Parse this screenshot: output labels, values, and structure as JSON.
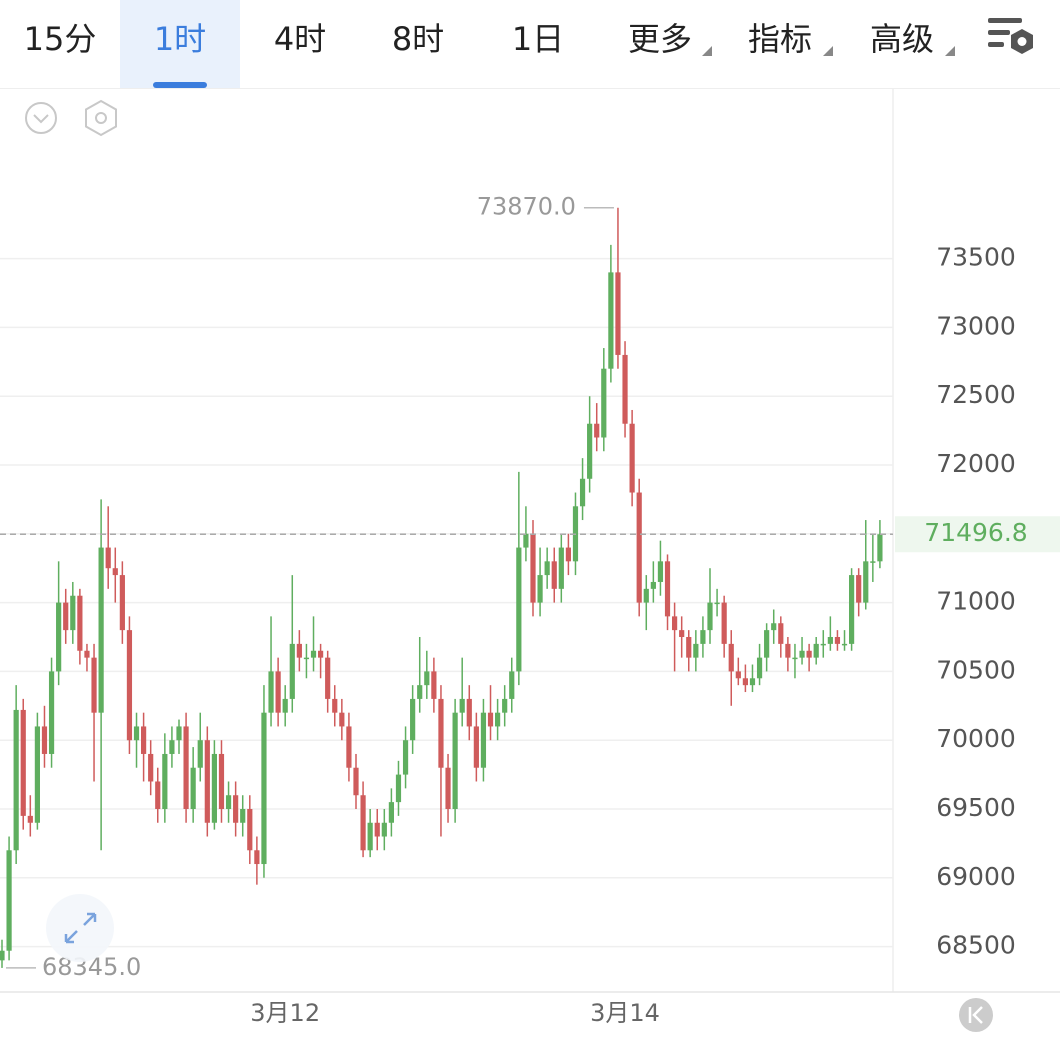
{
  "toolbar": {
    "tabs": [
      "15分",
      "1时",
      "4时",
      "8时",
      "1日",
      "更多",
      "指标",
      "高级"
    ]
  },
  "chart_data": {
    "type": "candlestick",
    "up_color": "#5fae5f",
    "down_color": "#cf5b5b",
    "ylim": [
      68170,
      74740
    ],
    "yticks": [
      68500,
      69000,
      69500,
      70000,
      70500,
      71000,
      71500,
      72000,
      72500,
      73000,
      73500
    ],
    "grid": true,
    "last_price": 71496.8,
    "high_label": {
      "value": 73870,
      "label": "73870.0"
    },
    "low_label": {
      "value": 68345,
      "label": "68345.0"
    },
    "categories": [
      null,
      null,
      null,
      null,
      null,
      null,
      null,
      null,
      null,
      null,
      null,
      null,
      null,
      null,
      null,
      null,
      null,
      null,
      null,
      null,
      null,
      null,
      null,
      null,
      null,
      null,
      null,
      null,
      null,
      null,
      null,
      null,
      null,
      null,
      null,
      null,
      null,
      null,
      null,
      null,
      "3月12",
      null,
      null,
      null,
      null,
      null,
      null,
      null,
      null,
      null,
      null,
      null,
      null,
      null,
      null,
      null,
      null,
      null,
      null,
      null,
      null,
      null,
      null,
      null,
      null,
      null,
      null,
      null,
      null,
      null,
      null,
      null,
      null,
      null,
      null,
      null,
      null,
      null,
      null,
      null,
      null,
      null,
      null,
      null,
      null,
      null,
      null,
      null,
      "3月14",
      null,
      null,
      null,
      null,
      null,
      null,
      null,
      null,
      null,
      null,
      null,
      null,
      null,
      null,
      null,
      null,
      null,
      null,
      null,
      null,
      null,
      null,
      null,
      null,
      null,
      null,
      null,
      null,
      null,
      null,
      null,
      null,
      null,
      null,
      null,
      null,
      null,
      null,
      null,
      null,
      null
    ],
    "ohlc": [
      [
        68400,
        68550,
        68345,
        68470
      ],
      [
        68470,
        69300,
        68400,
        69200
      ],
      [
        69200,
        70400,
        69100,
        70220
      ],
      [
        70220,
        70300,
        69350,
        69450
      ],
      [
        69450,
        69600,
        69300,
        69400
      ],
      [
        69400,
        70200,
        69350,
        70100
      ],
      [
        70100,
        70250,
        69800,
        69900
      ],
      [
        69900,
        70600,
        69800,
        70500
      ],
      [
        70500,
        71300,
        70400,
        71000
      ],
      [
        71000,
        71100,
        70700,
        70800
      ],
      [
        70800,
        71150,
        70700,
        71050
      ],
      [
        71050,
        71100,
        70550,
        70650
      ],
      [
        70650,
        70700,
        70500,
        70600
      ],
      [
        70600,
        70700,
        69700,
        70200
      ],
      [
        70200,
        71750,
        69200,
        71400
      ],
      [
        71400,
        71700,
        71100,
        71250
      ],
      [
        71250,
        71400,
        71000,
        71200
      ],
      [
        71200,
        71300,
        70700,
        70800
      ],
      [
        70800,
        70900,
        69900,
        70000
      ],
      [
        70000,
        70200,
        69800,
        70100
      ],
      [
        70100,
        70200,
        69700,
        69900
      ],
      [
        69900,
        70000,
        69600,
        69700
      ],
      [
        69700,
        69800,
        69400,
        69500
      ],
      [
        69500,
        70050,
        69400,
        69900
      ],
      [
        69900,
        70100,
        69800,
        70000
      ],
      [
        70000,
        70150,
        69900,
        70100
      ],
      [
        70100,
        70200,
        69400,
        69500
      ],
      [
        69500,
        69950,
        69400,
        69800
      ],
      [
        69800,
        70200,
        69700,
        70000
      ],
      [
        70000,
        70100,
        69300,
        69400
      ],
      [
        69400,
        70000,
        69350,
        69900
      ],
      [
        69900,
        70000,
        69400,
        69500
      ],
      [
        69500,
        69700,
        69400,
        69600
      ],
      [
        69600,
        69700,
        69300,
        69400
      ],
      [
        69400,
        69600,
        69300,
        69500
      ],
      [
        69500,
        69600,
        69100,
        69200
      ],
      [
        69200,
        69300,
        68950,
        69100
      ],
      [
        69100,
        70400,
        69000,
        70200
      ],
      [
        70200,
        70900,
        70100,
        70500
      ],
      [
        70500,
        70600,
        70100,
        70200
      ],
      [
        70200,
        70400,
        70100,
        70300
      ],
      [
        70300,
        71200,
        70200,
        70700
      ],
      [
        70700,
        70800,
        70500,
        70600
      ],
      [
        70600,
        70700,
        70450,
        70600
      ],
      [
        70600,
        70900,
        70500,
        70650
      ],
      [
        70650,
        70700,
        70450,
        70600
      ],
      [
        70600,
        70650,
        70200,
        70300
      ],
      [
        70300,
        70400,
        70100,
        70200
      ],
      [
        70200,
        70300,
        70000,
        70100
      ],
      [
        70100,
        70200,
        69700,
        69800
      ],
      [
        69800,
        69900,
        69500,
        69600
      ],
      [
        69600,
        69700,
        69150,
        69200
      ],
      [
        69200,
        69500,
        69150,
        69400
      ],
      [
        69400,
        69500,
        69200,
        69300
      ],
      [
        69300,
        69500,
        69200,
        69400
      ],
      [
        69400,
        69650,
        69300,
        69550
      ],
      [
        69550,
        69850,
        69450,
        69750
      ],
      [
        69750,
        70100,
        69650,
        70000
      ],
      [
        70000,
        70400,
        69900,
        70300
      ],
      [
        70300,
        70750,
        70200,
        70400
      ],
      [
        70400,
        70650,
        70300,
        70500
      ],
      [
        70500,
        70600,
        70200,
        70300
      ],
      [
        70300,
        70400,
        69300,
        69800
      ],
      [
        69800,
        69900,
        69400,
        69500
      ],
      [
        69500,
        70300,
        69400,
        70200
      ],
      [
        70200,
        70600,
        70100,
        70300
      ],
      [
        70300,
        70400,
        70000,
        70100
      ],
      [
        70100,
        70200,
        69700,
        69800
      ],
      [
        69800,
        70300,
        69700,
        70200
      ],
      [
        70200,
        70400,
        70000,
        70100
      ],
      [
        70100,
        70300,
        70000,
        70200
      ],
      [
        70200,
        70400,
        70100,
        70300
      ],
      [
        70300,
        70600,
        70200,
        70500
      ],
      [
        70500,
        71950,
        70400,
        71400
      ],
      [
        71400,
        71700,
        71300,
        71500
      ],
      [
        71500,
        71600,
        70900,
        71000
      ],
      [
        71000,
        71400,
        70900,
        71200
      ],
      [
        71200,
        71400,
        71100,
        71300
      ],
      [
        71300,
        71400,
        71000,
        71100
      ],
      [
        71100,
        71500,
        71000,
        71400
      ],
      [
        71400,
        71500,
        71200,
        71300
      ],
      [
        71300,
        71800,
        71200,
        71700
      ],
      [
        71700,
        72050,
        71600,
        71900
      ],
      [
        71900,
        72500,
        71800,
        72300
      ],
      [
        72300,
        72450,
        72100,
        72200
      ],
      [
        72200,
        72850,
        72100,
        72700
      ],
      [
        72700,
        73600,
        72600,
        73400
      ],
      [
        73400,
        73870,
        72700,
        72800
      ],
      [
        72800,
        72900,
        72200,
        72300
      ],
      [
        72300,
        72400,
        71700,
        71800
      ],
      [
        71800,
        71900,
        70900,
        71000
      ],
      [
        71000,
        71200,
        70800,
        71100
      ],
      [
        71100,
        71300,
        71000,
        71150
      ],
      [
        71150,
        71450,
        71050,
        71300
      ],
      [
        71300,
        71350,
        70800,
        70900
      ],
      [
        70900,
        71000,
        70500,
        70800
      ],
      [
        70800,
        70900,
        70600,
        70750
      ],
      [
        70750,
        70800,
        70500,
        70600
      ],
      [
        70600,
        70800,
        70500,
        70700
      ],
      [
        70700,
        70900,
        70600,
        70800
      ],
      [
        70800,
        71250,
        70700,
        71000
      ],
      [
        71000,
        71100,
        70900,
        71000
      ],
      [
        71000,
        71050,
        70600,
        70700
      ],
      [
        70700,
        70800,
        70250,
        70500
      ],
      [
        70500,
        70600,
        70400,
        70450
      ],
      [
        70450,
        70550,
        70350,
        70400
      ],
      [
        70400,
        70550,
        70350,
        70450
      ],
      [
        70450,
        70700,
        70400,
        70600
      ],
      [
        70600,
        70850,
        70500,
        70800
      ],
      [
        70800,
        70950,
        70700,
        70850
      ],
      [
        70850,
        70900,
        70600,
        70700
      ],
      [
        70700,
        70750,
        70500,
        70600
      ],
      [
        70600,
        70700,
        70450,
        70600
      ],
      [
        70600,
        70750,
        70550,
        70650
      ],
      [
        70650,
        70700,
        70500,
        70600
      ],
      [
        70600,
        70750,
        70550,
        70700
      ],
      [
        70700,
        70800,
        70600,
        70700
      ],
      [
        70700,
        70900,
        70650,
        70750
      ],
      [
        70750,
        70800,
        70650,
        70700
      ],
      [
        70700,
        70800,
        70650,
        70700
      ],
      [
        70700,
        71250,
        70650,
        71200
      ],
      [
        71200,
        71250,
        70900,
        71000
      ],
      [
        71000,
        71600,
        70950,
        71300
      ],
      [
        71300,
        71500,
        71150,
        71300
      ],
      [
        71300,
        71600,
        71250,
        71496.8
      ]
    ]
  }
}
